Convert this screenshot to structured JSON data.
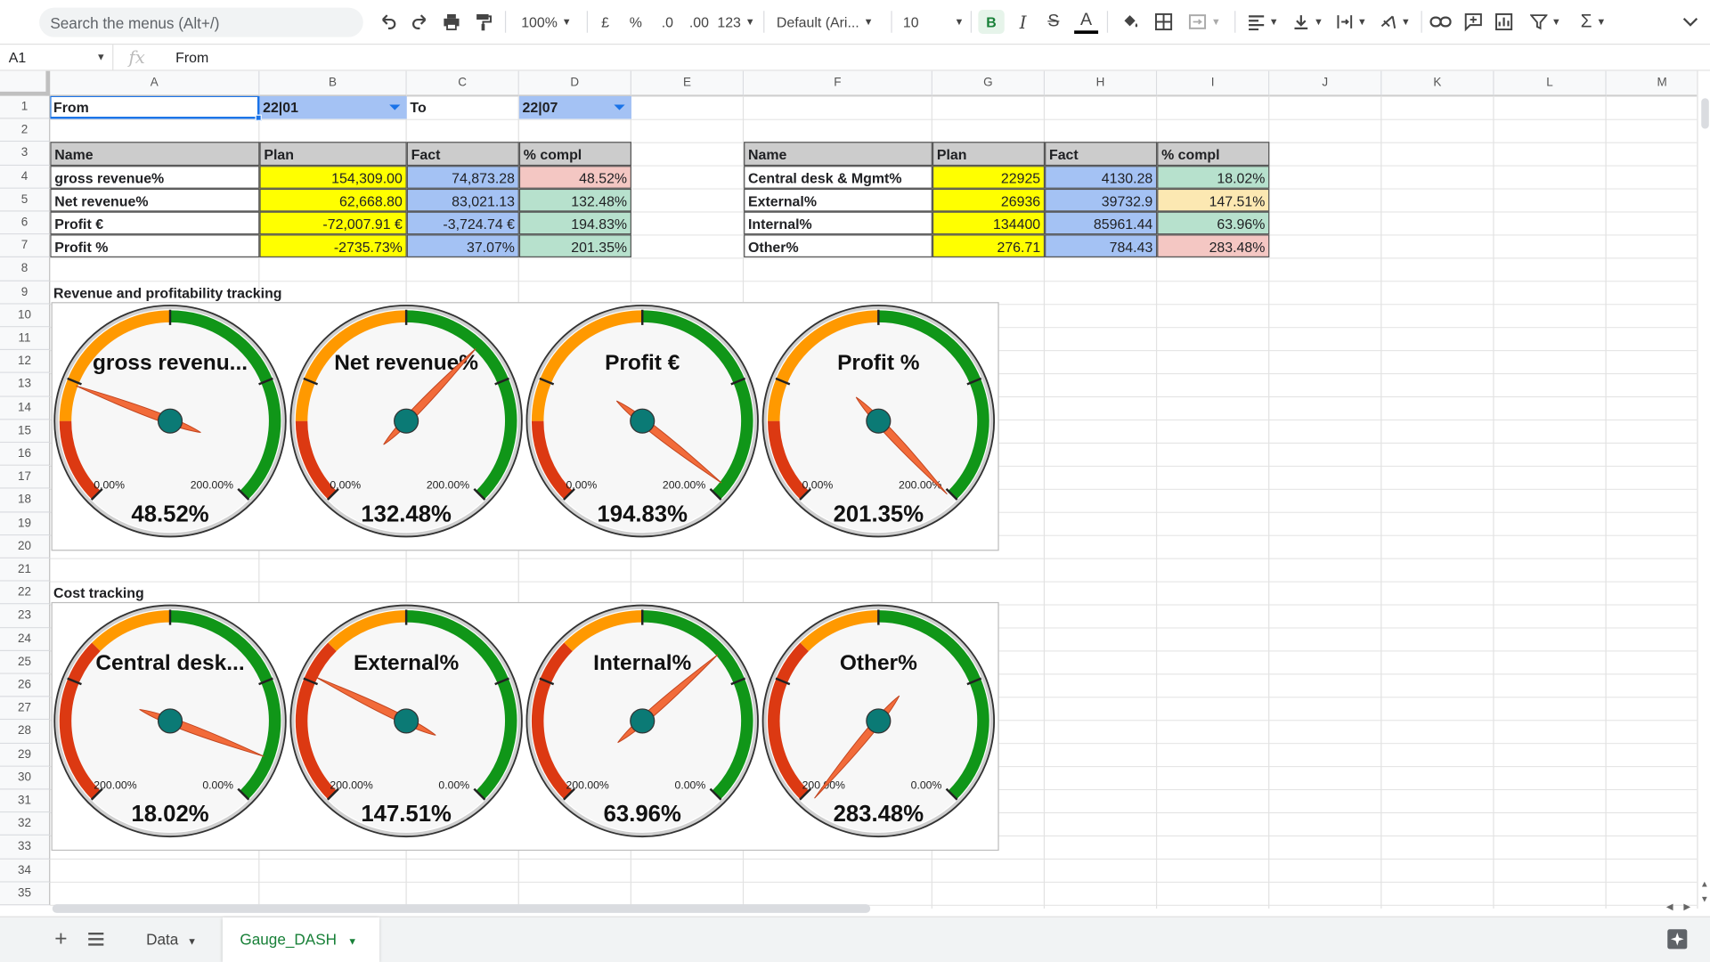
{
  "toolbar": {
    "search_placeholder": "Search the menus (Alt+/)",
    "zoom": "100%",
    "currency": "£",
    "percent": "%",
    "dec_decrease": ".0",
    "dec_increase": ".00",
    "more_formats": "123",
    "font": "Default (Ari...",
    "font_size": "10"
  },
  "formula_bar": {
    "cell_ref": "A1",
    "fx": "fx",
    "value": "From"
  },
  "columns": [
    "A",
    "B",
    "C",
    "D",
    "E",
    "F",
    "G",
    "H",
    "I",
    "J",
    "K",
    "L",
    "M"
  ],
  "rows": [
    "1",
    "2",
    "3",
    "4",
    "5",
    "6",
    "7",
    "8",
    "9",
    "10",
    "11",
    "12",
    "13",
    "14",
    "15",
    "16",
    "17",
    "18",
    "19",
    "20",
    "21",
    "22",
    "23",
    "24",
    "25",
    "26",
    "27",
    "28",
    "29",
    "30",
    "31",
    "32",
    "33",
    "34",
    "35"
  ],
  "header_row": {
    "from_label": "From",
    "from_value": "22|01",
    "to_label": "To",
    "to_value": "22|07"
  },
  "table_left": {
    "headers": [
      "Name",
      "Plan",
      "Fact",
      "% compl"
    ],
    "rows": [
      [
        "gross revenue%",
        "154,309.00",
        "74,873.28",
        "48.52%"
      ],
      [
        "Net revenue%",
        "62,668.80",
        "83,021.13",
        "132.48%"
      ],
      [
        "Profit €",
        "-72,007.91 €",
        "-3,724.74 €",
        "194.83%"
      ],
      [
        "Profit %",
        "-2735.73%",
        "37.07%",
        "201.35%"
      ]
    ]
  },
  "table_right": {
    "headers": [
      "Name",
      "Plan",
      "Fact",
      "% compl"
    ],
    "rows": [
      [
        "Central desk & Mgmt%",
        "22925",
        "4130.28",
        "18.02%"
      ],
      [
        "External%",
        "26936",
        "39732.9",
        "147.51%"
      ],
      [
        "Internal%",
        "134400",
        "85961.44",
        "63.96%"
      ],
      [
        "Other%",
        "276.71",
        "784.43",
        "283.48%"
      ]
    ]
  },
  "section_revenue": "Revenue and profitability tracking",
  "section_cost": "Cost tracking",
  "gauges_revenue": [
    {
      "label": "gross revenu...",
      "value_text": "48.52%",
      "value": 48.52,
      "min_label": "0.00%",
      "max_label": "200.00%"
    },
    {
      "label": "Net revenue%",
      "value_text": "132.48%",
      "value": 132.48,
      "min_label": "0.00%",
      "max_label": "200.00%"
    },
    {
      "label": "Profit €",
      "value_text": "194.83%",
      "value": 194.83,
      "min_label": "0.00%",
      "max_label": "200.00%"
    },
    {
      "label": "Profit %",
      "value_text": "201.35%",
      "value": 201.35,
      "min_label": "0.00%",
      "max_label": "200.00%"
    }
  ],
  "gauges_cost": [
    {
      "label": "Central desk...",
      "value_text": "18.02%",
      "value": 18.02,
      "min_label": "200.00%",
      "max_label": "0.00%"
    },
    {
      "label": "External%",
      "value_text": "147.51%",
      "value": 147.51,
      "min_label": "200.00%",
      "max_label": "0.00%"
    },
    {
      "label": "Internal%",
      "value_text": "63.96%",
      "value": 63.96,
      "min_label": "200.00%",
      "max_label": "0.00%"
    },
    {
      "label": "Other%",
      "value_text": "283.48%",
      "value": 283.48,
      "min_label": "200.00%",
      "max_label": "0.00%"
    }
  ],
  "sheet_tabs": [
    {
      "label": "Data",
      "active": false
    },
    {
      "label": "Gauge_DASH",
      "active": true
    }
  ],
  "colors": {
    "gauge_red": "#dc3912",
    "gauge_orange": "#ff9900",
    "gauge_green": "#109618",
    "needle": "#f26b3a",
    "hub": "#0b7a75",
    "plan_yellow": "#ffff00",
    "fact_blue": "#a4c2f4",
    "active_tab": "#188038"
  }
}
